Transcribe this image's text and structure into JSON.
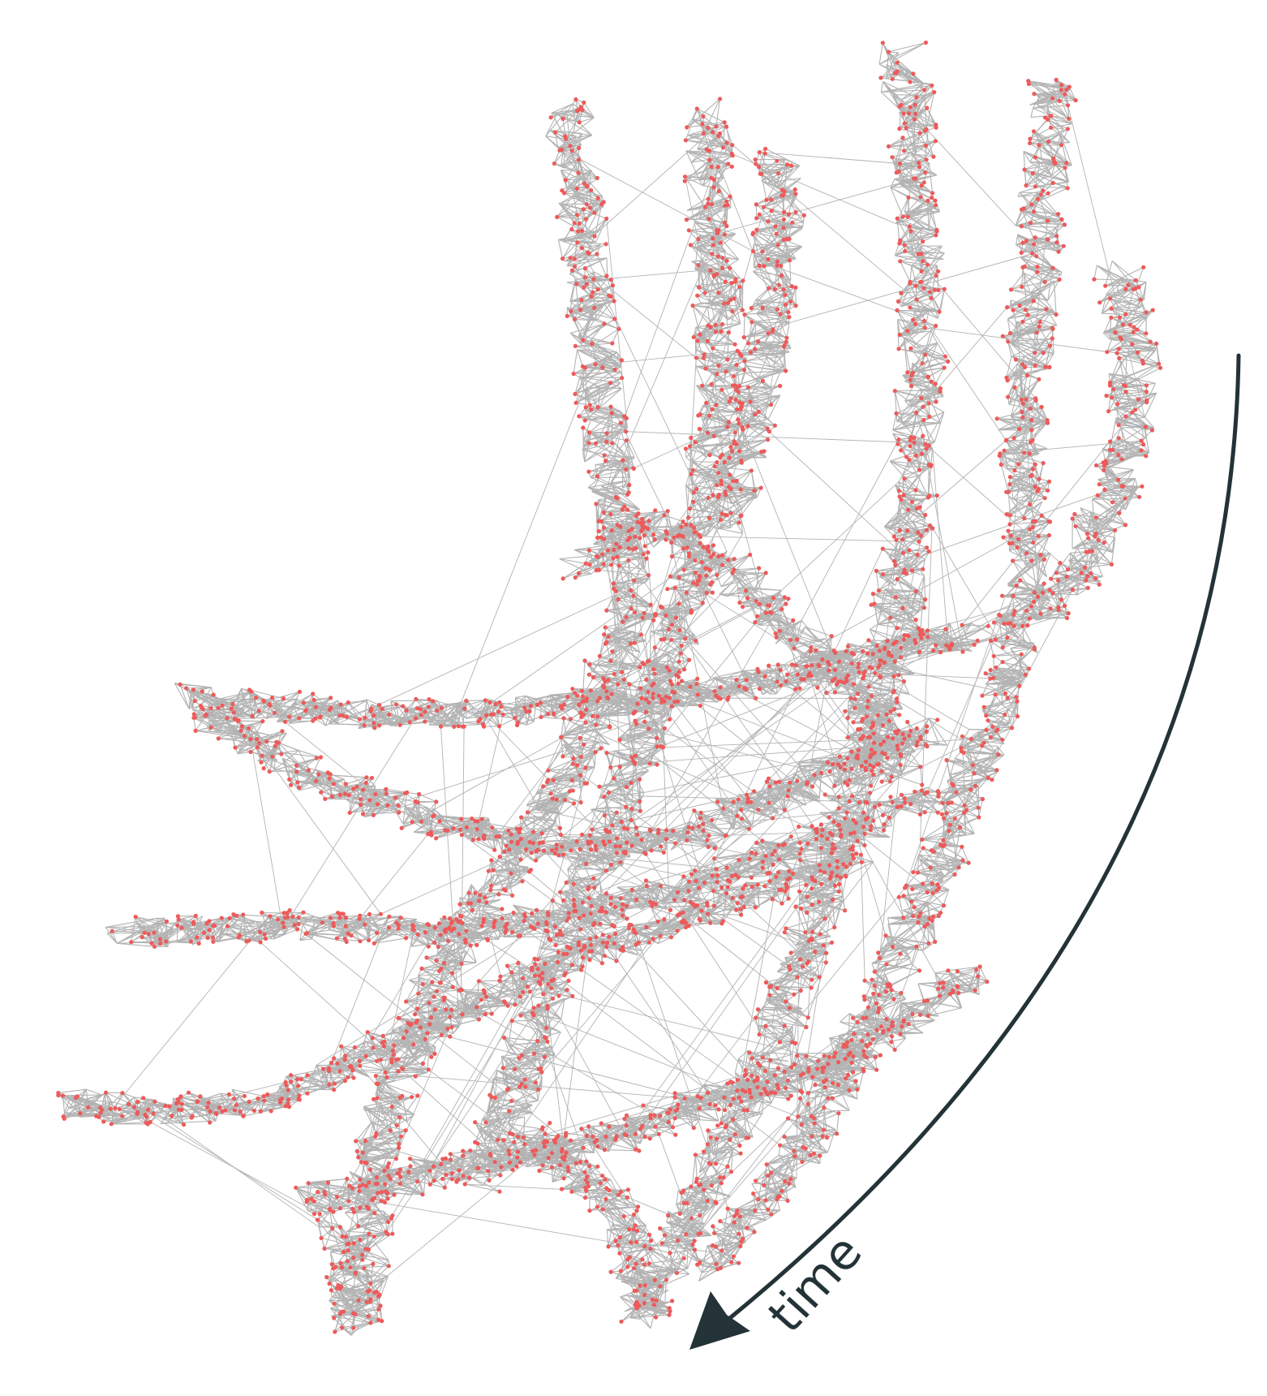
{
  "colors": {
    "edge": "#b3b3b3",
    "node": "#ee5a5a",
    "arrow": "#233338",
    "background": "#ffffff"
  },
  "annotation": {
    "arrow_label": "time"
  },
  "legend": null
}
